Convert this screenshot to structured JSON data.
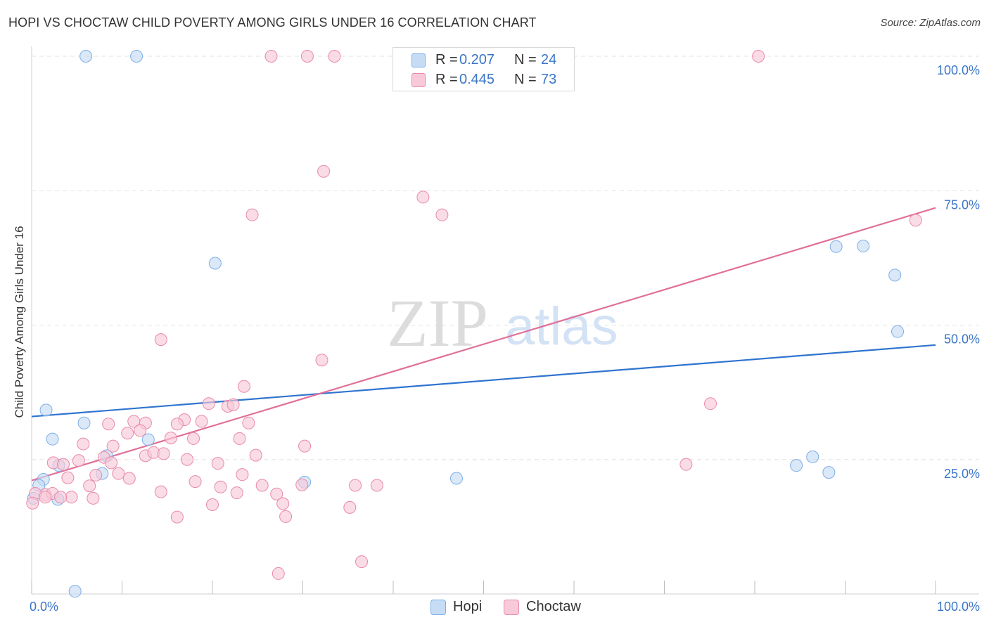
{
  "header": {
    "title": "HOPI VS CHOCTAW CHILD POVERTY AMONG GIRLS UNDER 16 CORRELATION CHART",
    "source": "Source: ZipAtlas.com"
  },
  "legend": {
    "r_label": "R =",
    "n_label": "N =",
    "series": [
      {
        "name": "Hopi",
        "r": "0.207",
        "n": "24",
        "color": "#7eaee8",
        "fill": "#c6dcf5"
      },
      {
        "name": "Choctaw",
        "r": "0.445",
        "n": "73",
        "color": "#e98aa8",
        "fill": "#f8cad9"
      }
    ]
  },
  "watermark": {
    "zip": "ZIP",
    "atlas": "atlas"
  },
  "chart_data": {
    "type": "scatter",
    "title": "HOPI VS CHOCTAW CHILD POVERTY AMONG GIRLS UNDER 16 CORRELATION CHART",
    "xlabel": "",
    "ylabel": "Child Poverty Among Girls Under 16",
    "xlim": [
      0,
      100
    ],
    "ylim": [
      0,
      100
    ],
    "x_tick_labels": [
      "0.0%",
      "100.0%"
    ],
    "y_ticks": [
      25,
      50,
      75,
      100
    ],
    "y_tick_labels": [
      "25.0%",
      "50.0%",
      "75.0%",
      "100.0%"
    ],
    "grid": true,
    "series": [
      {
        "name": "Hopi",
        "color": "#2f74cf",
        "trend": {
          "x": [
            0,
            100
          ],
          "y": [
            33.0,
            46.3
          ]
        },
        "points": [
          [
            6.0,
            100
          ],
          [
            11.6,
            100
          ],
          [
            20.3,
            61.5
          ],
          [
            1.6,
            34.2
          ],
          [
            5.8,
            31.8
          ],
          [
            2.3,
            28.8
          ],
          [
            8.3,
            25.7
          ],
          [
            12.9,
            28.7
          ],
          [
            3.0,
            23.9
          ],
          [
            7.8,
            22.4
          ],
          [
            1.3,
            21.3
          ],
          [
            0.8,
            20.2
          ],
          [
            2.9,
            17.6
          ],
          [
            0.2,
            17.8
          ],
          [
            30.2,
            20.8
          ],
          [
            47.0,
            21.5
          ],
          [
            89.0,
            64.6
          ],
          [
            92.0,
            64.7
          ],
          [
            95.5,
            59.3
          ],
          [
            95.8,
            48.8
          ],
          [
            84.6,
            23.9
          ],
          [
            86.4,
            25.5
          ],
          [
            88.2,
            22.6
          ],
          [
            4.8,
            0.5
          ]
        ]
      },
      {
        "name": "Choctaw",
        "color": "#e07098",
        "trend": {
          "x": [
            0,
            100
          ],
          "y": [
            21.1,
            71.8
          ]
        },
        "points": [
          [
            26.5,
            100
          ],
          [
            30.5,
            100
          ],
          [
            33.5,
            100
          ],
          [
            80.4,
            100
          ],
          [
            32.3,
            78.6
          ],
          [
            43.3,
            73.8
          ],
          [
            24.4,
            70.5
          ],
          [
            45.4,
            70.5
          ],
          [
            97.8,
            69.5
          ],
          [
            14.3,
            47.3
          ],
          [
            32.1,
            43.5
          ],
          [
            23.5,
            38.6
          ],
          [
            19.6,
            35.4
          ],
          [
            21.7,
            34.9
          ],
          [
            22.3,
            35.2
          ],
          [
            75.1,
            35.4
          ],
          [
            11.3,
            32.1
          ],
          [
            12.6,
            31.8
          ],
          [
            16.9,
            32.4
          ],
          [
            18.8,
            32.1
          ],
          [
            24.0,
            31.8
          ],
          [
            8.5,
            31.6
          ],
          [
            10.6,
            29.9
          ],
          [
            12.0,
            30.4
          ],
          [
            15.4,
            29.0
          ],
          [
            17.9,
            28.9
          ],
          [
            23.0,
            28.9
          ],
          [
            5.7,
            27.9
          ],
          [
            9.0,
            27.5
          ],
          [
            30.2,
            27.5
          ],
          [
            12.6,
            25.7
          ],
          [
            13.5,
            26.3
          ],
          [
            14.6,
            26.1
          ],
          [
            17.2,
            25.0
          ],
          [
            24.8,
            25.8
          ],
          [
            2.4,
            24.4
          ],
          [
            3.5,
            24.1
          ],
          [
            5.2,
            24.8
          ],
          [
            8.0,
            25.4
          ],
          [
            20.6,
            24.3
          ],
          [
            8.8,
            24.4
          ],
          [
            7.1,
            22.1
          ],
          [
            4.0,
            21.6
          ],
          [
            18.1,
            20.9
          ],
          [
            25.5,
            20.2
          ],
          [
            29.9,
            20.3
          ],
          [
            35.8,
            20.2
          ],
          [
            38.2,
            20.2
          ],
          [
            6.4,
            20.1
          ],
          [
            20.9,
            19.9
          ],
          [
            14.3,
            19.0
          ],
          [
            22.7,
            18.8
          ],
          [
            27.1,
            18.6
          ],
          [
            4.4,
            18.0
          ],
          [
            1.5,
            18.5
          ],
          [
            0.4,
            18.7
          ],
          [
            2.3,
            18.7
          ],
          [
            6.8,
            17.8
          ],
          [
            0.1,
            16.9
          ],
          [
            20.0,
            16.6
          ],
          [
            27.8,
            16.8
          ],
          [
            35.2,
            16.1
          ],
          [
            16.1,
            14.3
          ],
          [
            28.1,
            14.4
          ],
          [
            36.5,
            6.0
          ],
          [
            27.3,
            3.8
          ],
          [
            72.4,
            24.1
          ],
          [
            1.5,
            18.0
          ],
          [
            3.2,
            18.0
          ],
          [
            9.6,
            22.4
          ],
          [
            16.1,
            31.6
          ],
          [
            23.3,
            22.2
          ],
          [
            10.8,
            21.5
          ]
        ]
      }
    ]
  }
}
